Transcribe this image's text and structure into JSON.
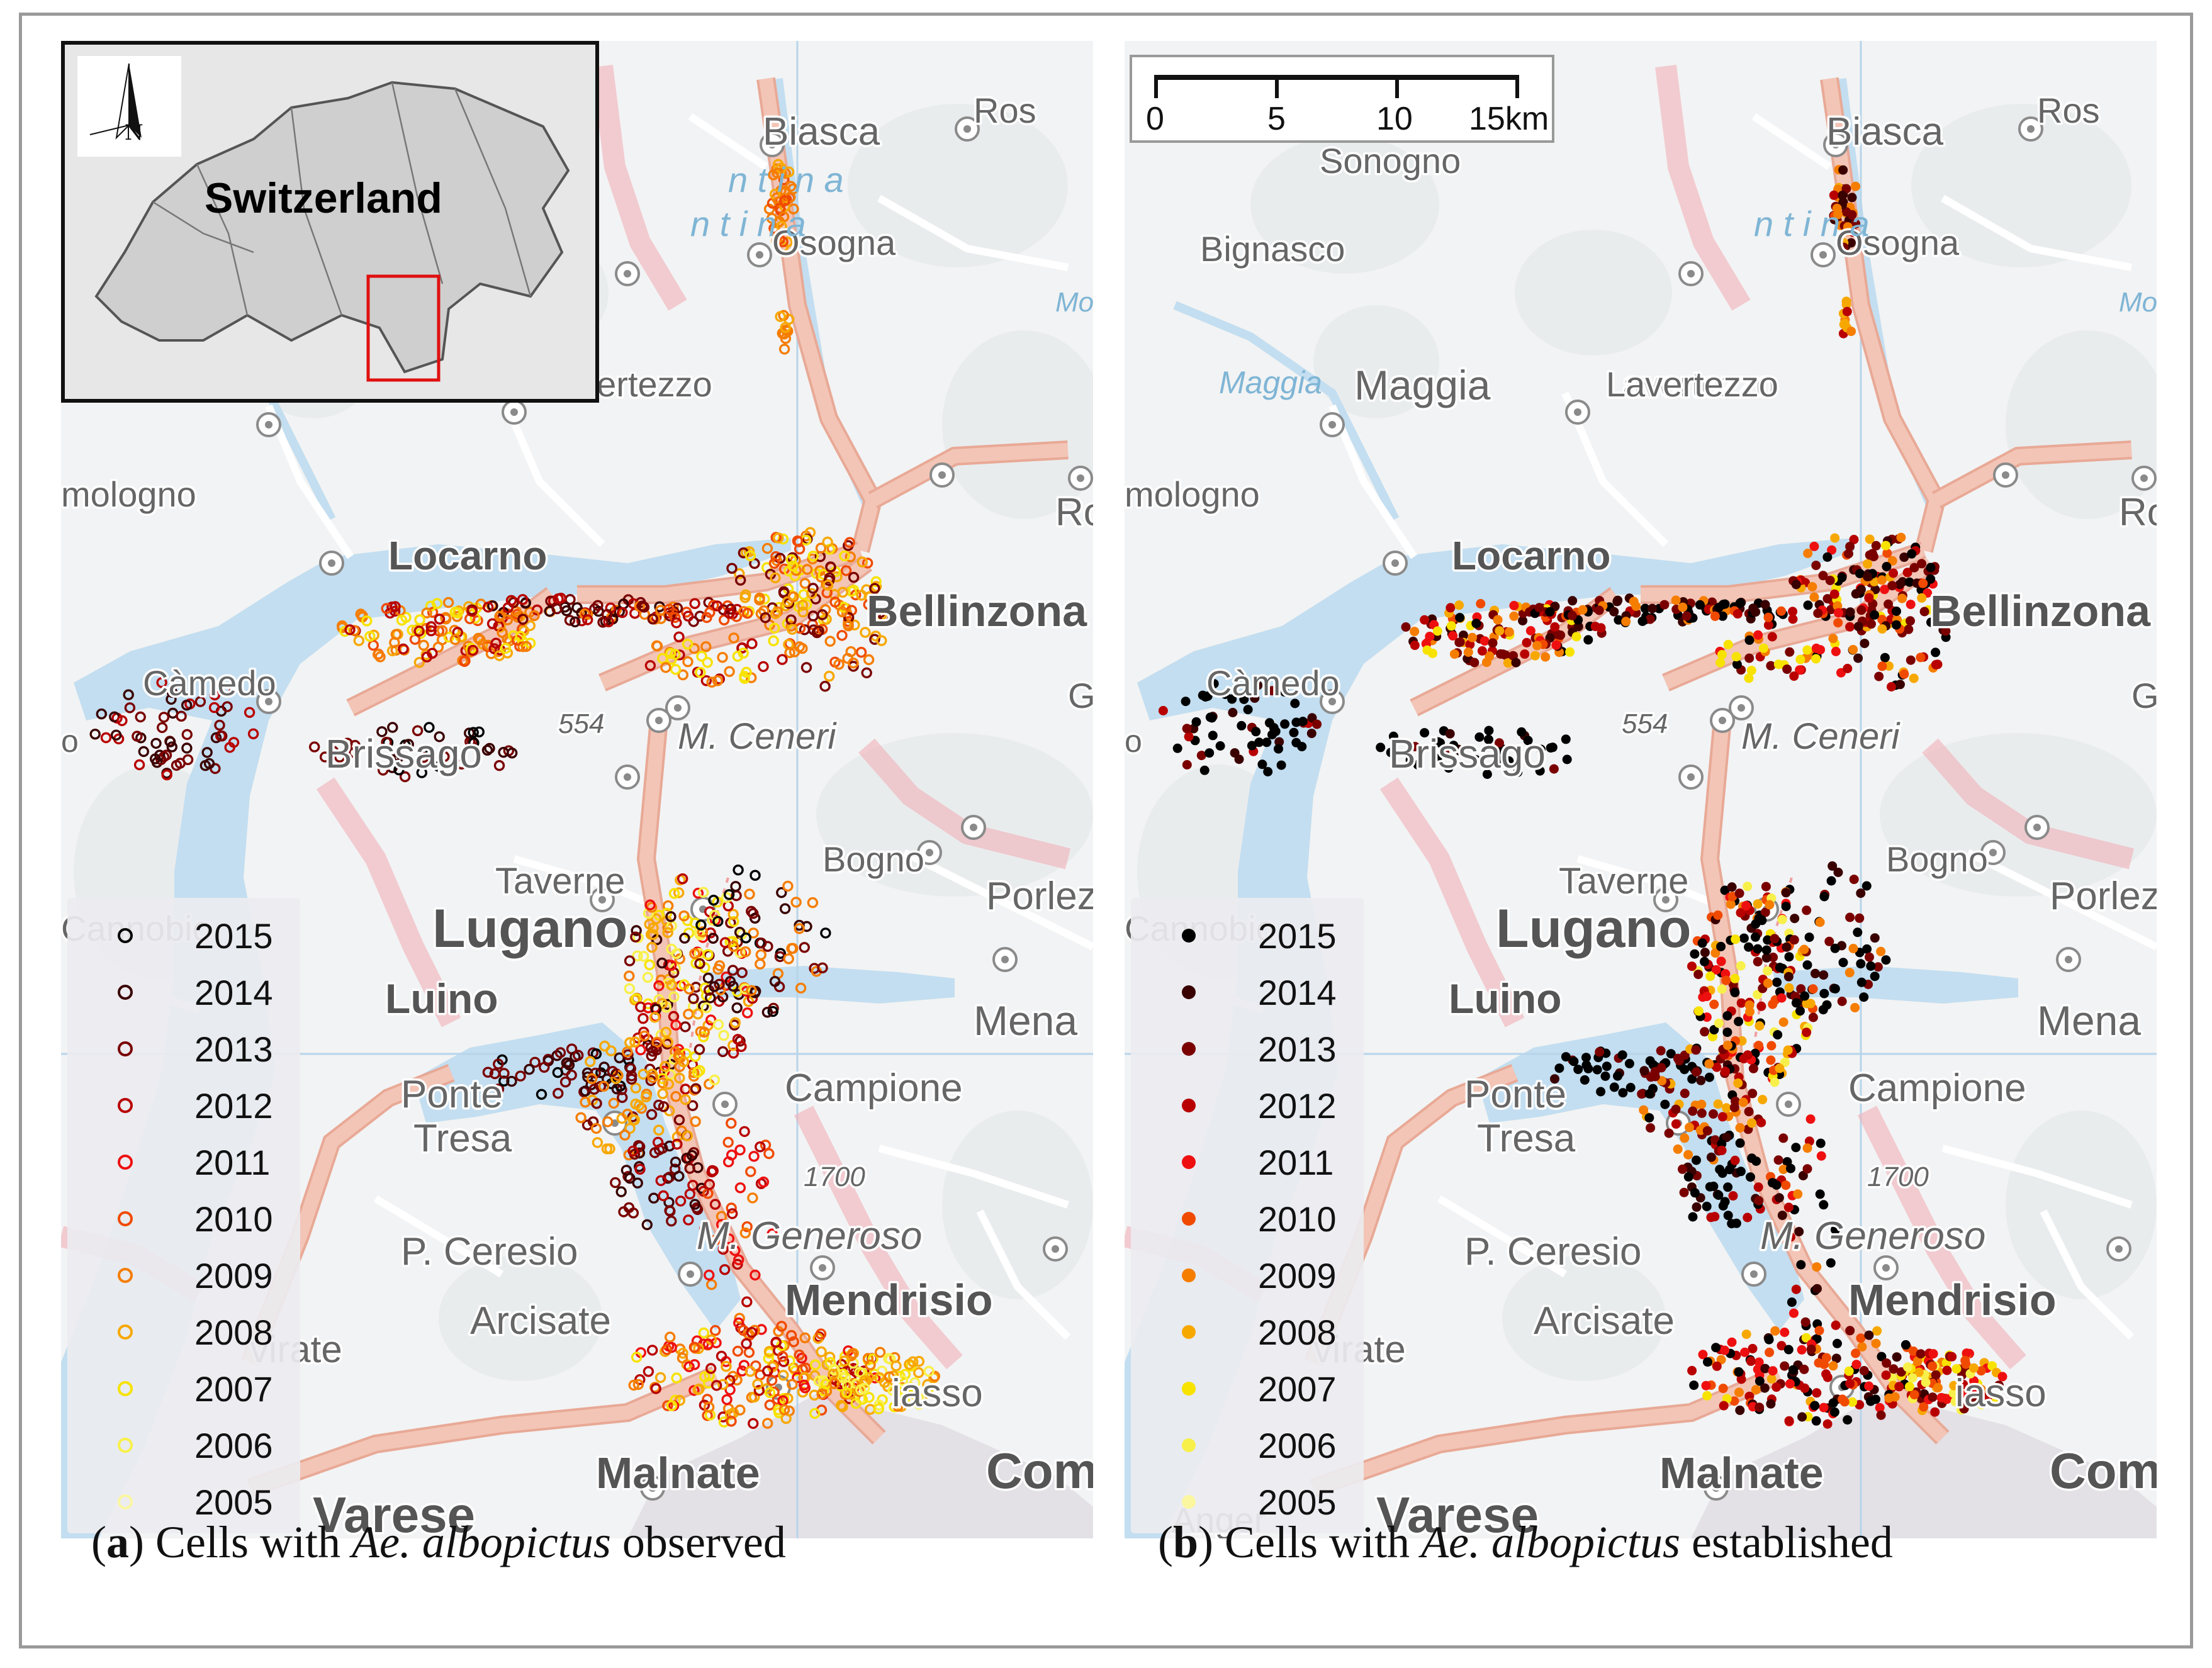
{
  "inset": {
    "title": "Switzerland",
    "north_label": "N"
  },
  "scale_bar": {
    "labels": [
      "0",
      "5",
      "10",
      "15km"
    ]
  },
  "place_names": {
    "biasca": "Biasca",
    "ros": "Ros",
    "osogna": "Osogna",
    "sonogno": "Sonogno",
    "bignasco": "Bignasco",
    "maggia": "Maggia",
    "lavertezzo": "Lavertezzo",
    "lavertezzo_cut": "avertezzo",
    "intragna": "mologno",
    "ro": "Ro",
    "locarno": "Locarno",
    "bellinzona": "Bellinzona",
    "camedo": "Càmedo",
    "brissago": "Brissago",
    "m_ceneri": "M. Ceneri",
    "elev_554": "554",
    "tavernes": "Taverne",
    "bogno": "Bogno",
    "porlezza": "Porlez",
    "lugano": "Lugano",
    "luino": "Luino",
    "mena": "Mena",
    "ponte_tresa_1": "Ponte",
    "ponte_tresa_2": "Tresa",
    "campione": "Campione",
    "elev_1700": "1700",
    "m_generoso": "M. Generoso",
    "p_ceresio": "P. Ceresio",
    "arcisate": "Arcisate",
    "mendrisio": "Mendrisio",
    "chiasso": "iasso",
    "malnate": "Malnate",
    "como": "Com",
    "varese": "Varese",
    "gavirate": "virate",
    "cannobio": "Cannobio",
    "maggia_river": "Maggia",
    "ticino_river": "n t i n a",
    "moesa": "Moe",
    "elev_o": "o",
    "g": "G",
    "angera": "Anger"
  },
  "legend": {
    "years": [
      "2015",
      "2014",
      "2013",
      "2012",
      "2011",
      "2010",
      "2009",
      "2008",
      "2007",
      "2006",
      "2005"
    ],
    "colors": [
      "#000000",
      "#3a0000",
      "#7a0000",
      "#b80000",
      "#ee1010",
      "#f04a00",
      "#f57d00",
      "#f7a800",
      "#f7e200",
      "#f8f04a",
      "#fbf7a0"
    ]
  },
  "panels": {
    "a": {
      "label": "a",
      "caption_pre": " Cells with ",
      "species": "Ae. albopictus",
      "caption_post": " observed",
      "marker": "ring"
    },
    "b": {
      "label": "b",
      "caption_pre": " Cells with ",
      "species": "Ae. albopictus",
      "caption_post": " established",
      "marker": "dot"
    }
  },
  "colors": {
    "water": "#c3def0",
    "land": "#f2f3f4",
    "road": "#f3c5b6",
    "border": "#f0b0b8"
  }
}
